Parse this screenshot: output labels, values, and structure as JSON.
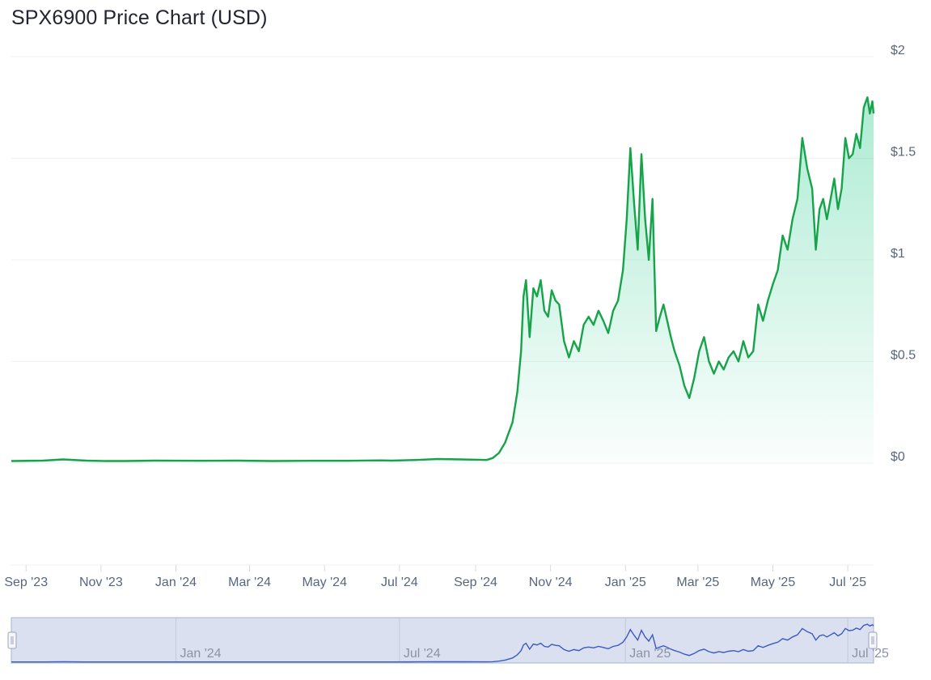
{
  "title": "SPX6900 Price Chart (USD)",
  "colors": {
    "line": "#16a34a",
    "area_top": "#16c784",
    "grid": "#eff2f5",
    "navigator_bg": "#dbe0f0",
    "navigator_line": "#3a5bbf",
    "navigator_border": "#a9b3d6"
  },
  "chart_data": {
    "type": "area",
    "title": "SPX6900 Price Chart (USD)",
    "xlabel": "",
    "ylabel": "",
    "ylim": [
      0,
      2
    ],
    "yticks": [
      {
        "value": 2,
        "label": "$2"
      },
      {
        "value": 1.5,
        "label": "$1.5"
      },
      {
        "value": 1,
        "label": "$1"
      },
      {
        "value": 0.5,
        "label": "$0.5"
      },
      {
        "value": 0,
        "label": "$0"
      }
    ],
    "xrange": [
      "2023-08-20",
      "2025-07-22"
    ],
    "xticks": [
      {
        "date": "2023-09-01",
        "label": "Sep '23"
      },
      {
        "date": "2023-11-01",
        "label": "Nov '23"
      },
      {
        "date": "2024-01-01",
        "label": "Jan '24"
      },
      {
        "date": "2024-03-01",
        "label": "Mar '24"
      },
      {
        "date": "2024-05-01",
        "label": "May '24"
      },
      {
        "date": "2024-07-01",
        "label": "Jul '24"
      },
      {
        "date": "2024-09-01",
        "label": "Sep '24"
      },
      {
        "date": "2024-11-01",
        "label": "Nov '24"
      },
      {
        "date": "2025-01-01",
        "label": "Jan '25"
      },
      {
        "date": "2025-03-01",
        "label": "Mar '25"
      },
      {
        "date": "2025-05-01",
        "label": "May '25"
      },
      {
        "date": "2025-07-01",
        "label": "Jul '25"
      }
    ],
    "grid": true,
    "legend": "none",
    "series": [
      {
        "x": [
          "2023-08-20",
          "2023-09-15",
          "2023-10-01",
          "2023-10-20",
          "2023-11-05",
          "2023-11-20",
          "2023-12-15",
          "2024-01-20",
          "2024-02-20",
          "2024-03-20",
          "2024-04-20",
          "2024-05-20",
          "2024-06-15",
          "2024-06-25",
          "2024-07-15",
          "2024-08-01",
          "2024-08-20",
          "2024-09-10",
          "2024-09-15",
          "2024-09-20",
          "2024-09-25",
          "2024-10-01",
          "2024-10-05",
          "2024-10-08",
          "2024-10-10",
          "2024-10-12",
          "2024-10-15",
          "2024-10-18",
          "2024-10-21",
          "2024-10-24",
          "2024-10-27",
          "2024-10-30",
          "2024-11-02",
          "2024-11-05",
          "2024-11-08",
          "2024-11-12",
          "2024-11-16",
          "2024-11-20",
          "2024-11-24",
          "2024-11-28",
          "2024-12-02",
          "2024-12-06",
          "2024-12-10",
          "2024-12-14",
          "2024-12-18",
          "2024-12-22",
          "2024-12-26",
          "2024-12-30",
          "2025-01-02",
          "2025-01-05",
          "2025-01-08",
          "2025-01-11",
          "2025-01-14",
          "2025-01-17",
          "2025-01-20",
          "2025-01-23",
          "2025-01-26",
          "2025-01-29",
          "2025-02-01",
          "2025-02-04",
          "2025-02-07",
          "2025-02-10",
          "2025-02-14",
          "2025-02-18",
          "2025-02-22",
          "2025-02-26",
          "2025-03-02",
          "2025-03-06",
          "2025-03-10",
          "2025-03-14",
          "2025-03-18",
          "2025-03-22",
          "2025-03-26",
          "2025-03-30",
          "2025-04-03",
          "2025-04-07",
          "2025-04-11",
          "2025-04-15",
          "2025-04-19",
          "2025-04-23",
          "2025-04-27",
          "2025-05-01",
          "2025-05-05",
          "2025-05-09",
          "2025-05-13",
          "2025-05-17",
          "2025-05-21",
          "2025-05-25",
          "2025-05-29",
          "2025-06-02",
          "2025-06-05",
          "2025-06-08",
          "2025-06-11",
          "2025-06-14",
          "2025-06-17",
          "2025-06-20",
          "2025-06-23",
          "2025-06-26",
          "2025-06-29",
          "2025-07-02",
          "2025-07-05",
          "2025-07-08",
          "2025-07-11",
          "2025-07-14",
          "2025-07-17",
          "2025-07-19",
          "2025-07-21",
          "2025-07-22"
        ],
        "y": [
          0.01,
          0.012,
          0.018,
          0.012,
          0.01,
          0.01,
          0.012,
          0.011,
          0.012,
          0.01,
          0.011,
          0.011,
          0.013,
          0.012,
          0.015,
          0.02,
          0.018,
          0.015,
          0.025,
          0.05,
          0.1,
          0.2,
          0.35,
          0.55,
          0.82,
          0.9,
          0.62,
          0.86,
          0.82,
          0.9,
          0.75,
          0.72,
          0.85,
          0.8,
          0.78,
          0.6,
          0.52,
          0.6,
          0.55,
          0.68,
          0.72,
          0.68,
          0.75,
          0.7,
          0.64,
          0.75,
          0.8,
          0.95,
          1.2,
          1.55,
          1.28,
          1.05,
          1.52,
          1.2,
          1.0,
          1.3,
          0.65,
          0.72,
          0.78,
          0.7,
          0.62,
          0.55,
          0.48,
          0.38,
          0.32,
          0.42,
          0.55,
          0.62,
          0.5,
          0.44,
          0.5,
          0.46,
          0.52,
          0.55,
          0.5,
          0.6,
          0.52,
          0.55,
          0.78,
          0.7,
          0.8,
          0.88,
          0.95,
          1.12,
          1.05,
          1.2,
          1.3,
          1.6,
          1.45,
          1.35,
          1.05,
          1.25,
          1.3,
          1.2,
          1.3,
          1.4,
          1.25,
          1.35,
          1.6,
          1.5,
          1.52,
          1.62,
          1.55,
          1.75,
          1.8,
          1.72,
          1.78,
          1.72
        ]
      }
    ]
  },
  "navigator": {
    "labels": [
      {
        "date": "2024-01-01",
        "label": "Jan '24"
      },
      {
        "date": "2024-07-01",
        "label": "Jul '24"
      },
      {
        "date": "2025-01-01",
        "label": "Jan '25"
      },
      {
        "date": "2025-07-01",
        "label": "Jul '25"
      }
    ]
  }
}
